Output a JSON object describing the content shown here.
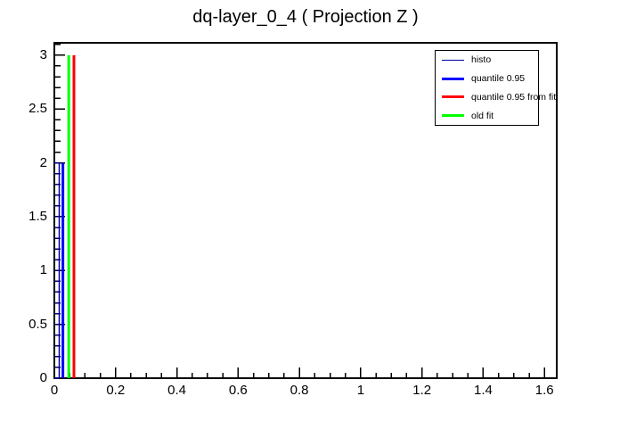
{
  "title": "dq-layer_0_4 ( Projection Z )",
  "chart_data": {
    "type": "line",
    "title": "dq-layer_0_4 ( Projection Z )",
    "background": "#ffffff",
    "frame_color": "#000000",
    "x_axis": {
      "min": 0,
      "max": 1.64,
      "major_tick_step": 0.2,
      "minor_tick_step": 0.05,
      "tick_values": [
        0,
        0.2,
        0.4,
        0.6,
        0.8,
        1,
        1.2,
        1.4,
        1.6
      ],
      "tick_labels": [
        "0",
        "0.2",
        "0.4",
        "0.6",
        "0.8",
        "1",
        "1.2",
        "1.4",
        "1.6"
      ]
    },
    "y_axis": {
      "min": 0,
      "max": 3.115,
      "major_tick_step": 0.5,
      "minor_tick_step": 0.1,
      "tick_values": [
        0,
        0.5,
        1,
        1.5,
        2,
        2.5,
        3
      ],
      "tick_labels": [
        "0",
        "0.5",
        "1",
        "1.5",
        "2",
        "2.5",
        "3"
      ]
    },
    "histogram": {
      "label": "histo",
      "color": "#000099",
      "content": 0.016,
      "y_min": 0,
      "y_max": 2.0,
      "bin_height": 0.1
    },
    "vertical_lines": [
      {
        "label": "quantile 0.95",
        "color": "#0000ff",
        "x": 0.028,
        "y_min": 0,
        "y_max": 2.0,
        "width": 3
      },
      {
        "label": "quantile 0.95 from fit",
        "color": "#ff0000",
        "x": 0.064,
        "y_min": 0,
        "y_max": 3.0,
        "width": 3
      },
      {
        "label": "old fit",
        "color": "#00ff00",
        "x": 0.047,
        "y_min": 0,
        "y_max": 3.0,
        "width": 3
      }
    ],
    "legend": {
      "position": "top-right",
      "entries": [
        {
          "label": "histo",
          "color": "#000099",
          "line_width": 1.5
        },
        {
          "label": "quantile 0.95",
          "color": "#0000ff",
          "line_width": 3
        },
        {
          "label": "quantile 0.95 from fit",
          "color": "#ff0000",
          "line_width": 3
        },
        {
          "label": "old fit",
          "color": "#00ff00",
          "line_width": 3
        }
      ]
    }
  }
}
